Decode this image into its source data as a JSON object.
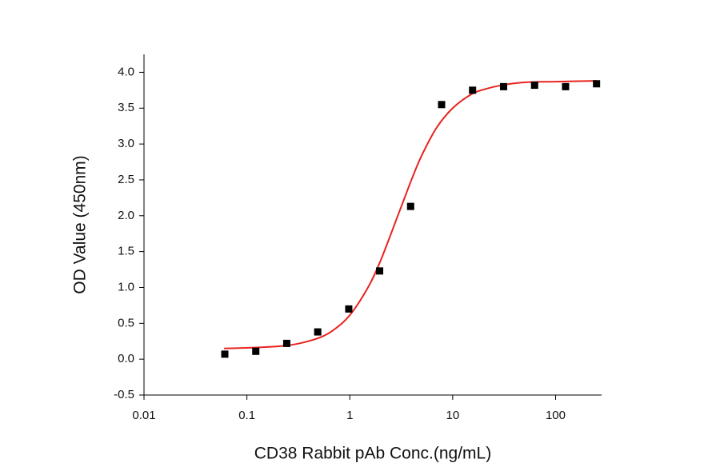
{
  "chart_data": {
    "type": "scatter",
    "x_label": "CD38 Rabbit pAb Conc.(ng/mL)",
    "y_label": "OD Value (450nm)",
    "xscale": "log",
    "xlim": [
      0.01,
      280
    ],
    "xticks": [
      0.01,
      0.1,
      1,
      10,
      100
    ],
    "ylim": [
      -0.5,
      4.25
    ],
    "yticks": [
      -0.5,
      {
        "value": 0,
        "label": "0.0"
      },
      0.5,
      {
        "value": 1,
        "label": "1.0"
      },
      1.5,
      {
        "value": 2,
        "label": "2.0"
      },
      2.5,
      {
        "value": 3,
        "label": "3.0"
      },
      3.5,
      {
        "value": 4,
        "label": "4.0"
      }
    ],
    "series": [
      {
        "type": "scatter",
        "color": "#000000",
        "x": [
          0.061,
          0.122,
          0.244,
          0.488,
          0.977,
          1.95,
          3.9,
          7.8,
          15.6,
          31.25,
          62.5,
          125,
          250
        ],
        "values": [
          0.07,
          0.11,
          0.22,
          0.38,
          0.7,
          1.23,
          2.13,
          3.55,
          3.75,
          3.8,
          3.82,
          3.8,
          3.84
        ]
      },
      {
        "type": "line",
        "color": "#e8231e",
        "x": [
          0.06,
          0.1,
          0.2,
          0.3,
          0.5,
          0.7,
          1,
          1.5,
          2,
          3,
          4,
          5,
          7,
          10,
          15,
          20,
          30,
          50,
          100,
          250
        ],
        "values": [
          0.15,
          0.158,
          0.179,
          0.21,
          0.296,
          0.41,
          0.613,
          0.998,
          1.38,
          2.04,
          2.51,
          2.84,
          3.23,
          3.5,
          3.69,
          3.76,
          3.82,
          3.86,
          3.87,
          3.88
        ]
      }
    ]
  }
}
